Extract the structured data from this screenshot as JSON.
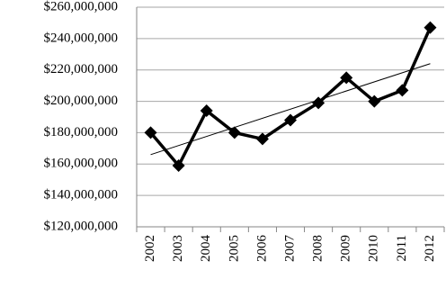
{
  "chart_data": {
    "type": "line",
    "categories": [
      "2002",
      "2003",
      "2004",
      "2005",
      "2006",
      "2007",
      "2008",
      "2009",
      "2010",
      "2011",
      "2012"
    ],
    "series": [
      {
        "color": "#000000",
        "values": [
          180000000,
          159000000,
          194000000,
          180000000,
          176000000,
          188000000,
          199000000,
          215000000,
          200000000,
          207000000,
          247000000
        ]
      }
    ],
    "ylim": [
      120000000,
      260000000
    ],
    "yticks": [
      {
        "value": 120000000,
        "label": "$120,000,000"
      },
      {
        "value": 140000000,
        "label": "$140,000,000"
      },
      {
        "value": 160000000,
        "label": "$160,000,000"
      },
      {
        "value": 180000000,
        "label": "$180,000,000"
      },
      {
        "value": 200000000,
        "label": "$200,000,000"
      },
      {
        "value": 220000000,
        "label": "$220,000,000"
      },
      {
        "value": 240000000,
        "label": "$240,000,000"
      },
      {
        "value": 260000000,
        "label": "$260,000,000"
      }
    ],
    "grid": true,
    "marker": "diamond",
    "trendline": "linear"
  }
}
